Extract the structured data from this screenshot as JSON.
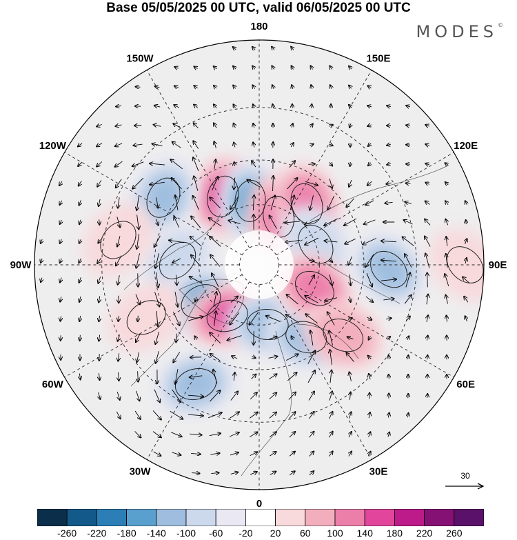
{
  "title": "Base 05/05/2025 00 UTC, valid 06/05/2025 00 UTC",
  "brand": "MODES",
  "brand_mark": "©",
  "map": {
    "projection": "north-polar-stereographic",
    "center_lon_label": "0",
    "longitude_labels": [
      {
        "text": "180",
        "lon": 180
      },
      {
        "text": "150E",
        "lon": 150
      },
      {
        "text": "120E",
        "lon": 120
      },
      {
        "text": "90E",
        "lon": 90
      },
      {
        "text": "60E",
        "lon": 60
      },
      {
        "text": "30E",
        "lon": 30
      },
      {
        "text": "0",
        "lon": 0
      },
      {
        "text": "30W",
        "lon": -30
      },
      {
        "text": "60W",
        "lon": -60
      },
      {
        "text": "90W",
        "lon": -90
      },
      {
        "text": "120W",
        "lon": -120
      },
      {
        "text": "150W",
        "lon": -150
      }
    ],
    "anomaly_centers": [
      {
        "lon": -152,
        "lat": 52,
        "level": 4
      },
      {
        "lon": -172,
        "lat": 58,
        "level": -4
      },
      {
        "lon": 158,
        "lat": 64,
        "level": 3
      },
      {
        "lon": 142,
        "lat": 52,
        "level": 3
      },
      {
        "lon": 110,
        "lat": 60,
        "level": -2
      },
      {
        "lon": -125,
        "lat": 35,
        "level": -3
      },
      {
        "lon": -93,
        "lat": 50,
        "level": -2
      },
      {
        "lon": -58,
        "lat": 56,
        "level": -4
      },
      {
        "lon": -32,
        "lat": 60,
        "level": 4
      },
      {
        "lon": 8,
        "lat": 60,
        "level": -3
      },
      {
        "lon": 33,
        "lat": 48,
        "level": -3
      },
      {
        "lon": 67,
        "lat": 60,
        "level": 3
      },
      {
        "lon": 50,
        "lat": 38,
        "level": 2
      },
      {
        "lon": 88,
        "lat": 30,
        "level": -3
      },
      {
        "lon": -28,
        "lat": 28,
        "level": -3
      },
      {
        "lon": -65,
        "lat": 32,
        "level": 1
      },
      {
        "lon": -100,
        "lat": 25,
        "level": 1
      },
      {
        "lon": 90,
        "lat": 5,
        "level": 1
      }
    ]
  },
  "colorbar": {
    "colors": [
      "#0b2f4b",
      "#135a8a",
      "#2b7fb6",
      "#5aa0cf",
      "#9fbedf",
      "#ccd9ec",
      "#eae8f2",
      "#ffffff",
      "#f8d9dc",
      "#f3aebd",
      "#ec7eaa",
      "#e1469c",
      "#bd1a8a",
      "#861175",
      "#591169"
    ],
    "labels": [
      "-260",
      "-220",
      "-180",
      "-140",
      "-100",
      "-60",
      "-20",
      "20",
      "60",
      "100",
      "140",
      "180",
      "220",
      "260"
    ]
  },
  "reference_vector": {
    "label": "30"
  }
}
